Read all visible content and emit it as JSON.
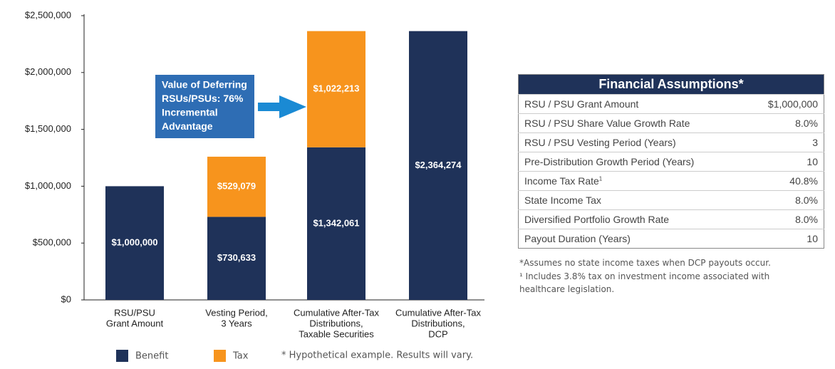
{
  "chart_data": {
    "type": "bar",
    "stacked": true,
    "categories": [
      [
        "RSU/PSU",
        "Grant Amount"
      ],
      [
        "Vesting Period,",
        "3 Years"
      ],
      [
        "Cumulative After-Tax",
        "Distributions,",
        "Taxable Securities"
      ],
      [
        "Cumulative After-Tax",
        "Distributions,",
        "DCP"
      ]
    ],
    "series": [
      {
        "name": "Benefit",
        "color": "#1f3259",
        "values": [
          1000000,
          730633,
          1342061,
          2364274
        ],
        "value_labels": [
          "$1,000,000",
          "$730,633",
          "$1,342,061",
          "$2,364,274"
        ]
      },
      {
        "name": "Tax",
        "color": "#f7941d",
        "values": [
          null,
          529079,
          1022213,
          null
        ],
        "value_labels": [
          null,
          "$529,079",
          "$1,022,213",
          null
        ]
      }
    ],
    "ylim": [
      0,
      2500000
    ],
    "yticks": [
      {
        "value": 0,
        "label": "$0"
      },
      {
        "value": 500000,
        "label": "$500,000"
      },
      {
        "value": 1000000,
        "label": "$1,000,000"
      },
      {
        "value": 1500000,
        "label": "$1,500,000"
      },
      {
        "value": 2000000,
        "label": "$2,000,000"
      },
      {
        "value": 2500000,
        "label": "$2,500,000"
      }
    ],
    "annotation": [
      "Value of Deferring",
      "RSUs/PSUs: 76%",
      "Incremental",
      "Advantage"
    ],
    "footnote": "* Hypothetical example. Results will vary."
  },
  "table": {
    "title": "Financial Assumptions*",
    "rows": [
      {
        "label": "RSU / PSU Grant Amount",
        "value": "$1,000,000"
      },
      {
        "label": "RSU / PSU Share Value Growth Rate",
        "value": "8.0%"
      },
      {
        "label": "RSU / PSU Vesting Period (Years)",
        "value": "3"
      },
      {
        "label": "Pre-Distribution Growth Period (Years)",
        "value": "10"
      },
      {
        "label": "Income Tax Rate",
        "note": "1",
        "value": "40.8%"
      },
      {
        "label": "State Income Tax",
        "value": "8.0%"
      },
      {
        "label": "Diversified Portfolio Growth Rate",
        "value": "8.0%"
      },
      {
        "label": "Payout Duration (Years)",
        "value": "10"
      }
    ],
    "notes": [
      "*Assumes no state income taxes when DCP payouts occur.",
      "¹ Includes 3.8% tax on investment income associated with healthcare legislation."
    ]
  }
}
